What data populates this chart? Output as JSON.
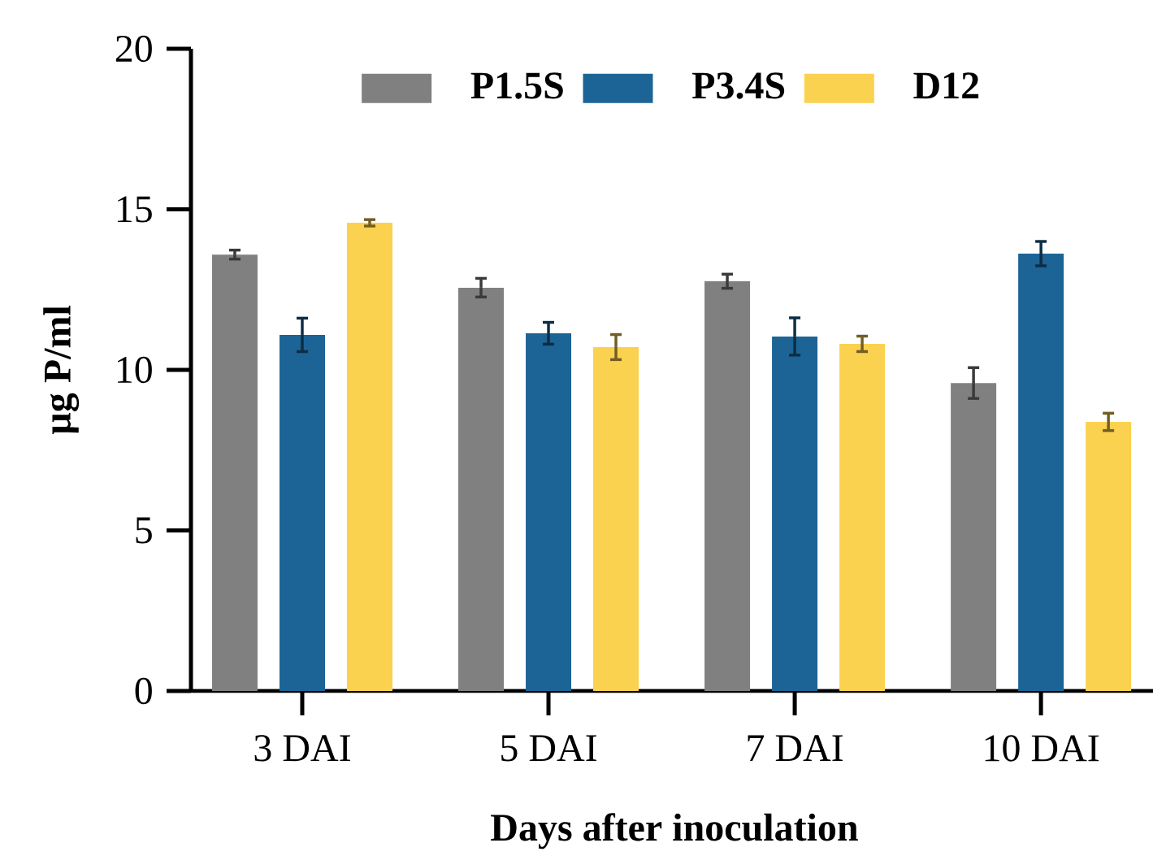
{
  "chart_data": {
    "type": "bar",
    "xlabel": "Days after inoculation",
    "ylabel": "µg P/ml",
    "categories": [
      "3 DAI",
      "5 DAI",
      "7 DAI",
      "10 DAI"
    ],
    "series": [
      {
        "name": "P1.5S",
        "color": "#808080",
        "values": [
          13.59,
          12.56,
          12.76,
          9.59
        ],
        "errors": [
          0.14,
          0.29,
          0.22,
          0.48
        ]
      },
      {
        "name": "P3.4S",
        "color": "#1d6496",
        "values": [
          11.09,
          11.14,
          11.04,
          13.62
        ],
        "errors": [
          0.52,
          0.34,
          0.58,
          0.38
        ]
      },
      {
        "name": "D12",
        "color": "#fbd150",
        "values": [
          14.58,
          10.71,
          10.81,
          8.38
        ],
        "errors": [
          0.1,
          0.39,
          0.24,
          0.27
        ]
      }
    ],
    "ylim": [
      0,
      20
    ],
    "yticks": [
      0,
      5,
      10,
      15,
      20
    ],
    "legend": "top"
  }
}
